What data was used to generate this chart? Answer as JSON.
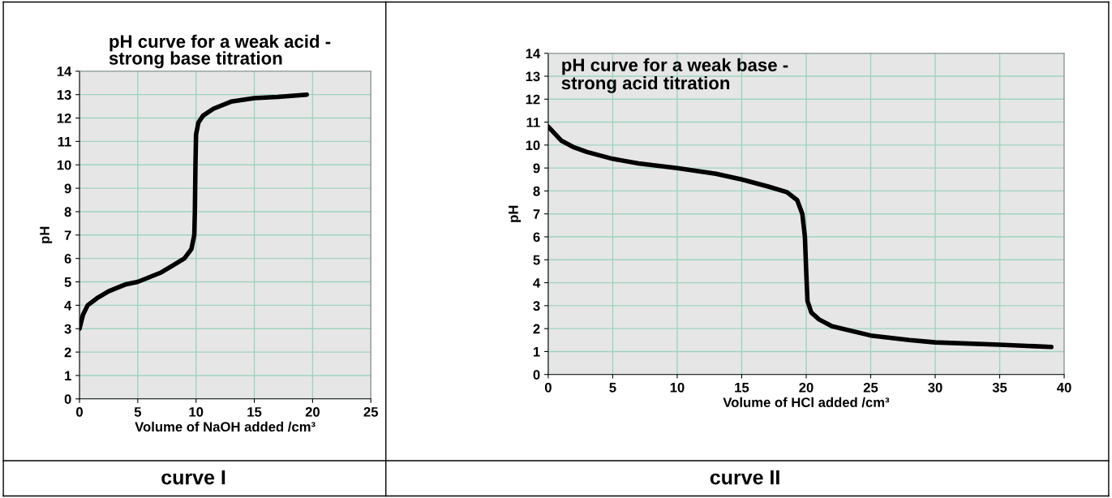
{
  "chart_data": [
    {
      "type": "line",
      "title": "pH curve for a weak acid -\nstrong base titration",
      "xlabel": "Volume of NaOH added /cm³",
      "ylabel": "pH",
      "x": [
        0,
        0.3,
        0.7,
        1.5,
        2.5,
        4,
        5,
        6,
        7,
        8,
        9,
        9.6,
        9.85,
        9.9,
        9.95,
        10,
        10.2,
        10.6,
        11.5,
        13,
        15,
        17,
        19.5
      ],
      "series": [
        {
          "color": "#000000",
          "values": [
            3.0,
            3.6,
            4.0,
            4.3,
            4.6,
            4.9,
            5.0,
            5.2,
            5.4,
            5.7,
            6.0,
            6.4,
            7.0,
            8.0,
            10.0,
            11.3,
            11.8,
            12.1,
            12.4,
            12.7,
            12.85,
            12.9,
            13.0
          ]
        }
      ],
      "xlim": [
        0,
        25
      ],
      "ylim": [
        0,
        14
      ],
      "xticks": [
        0,
        5,
        10,
        15,
        20,
        25
      ],
      "yticks": [
        0,
        1,
        2,
        3,
        4,
        5,
        6,
        7,
        8,
        9,
        10,
        11,
        12,
        13,
        14
      ],
      "grid": true,
      "annotations": [
        "curve I"
      ]
    },
    {
      "type": "line",
      "title": "pH curve for a weak base -\nstrong acid titration",
      "xlabel": "Volume of HCl added /cm³",
      "ylabel": "pH",
      "x": [
        0,
        0.5,
        1,
        2,
        3,
        5,
        7,
        10,
        13,
        15,
        17,
        18.5,
        19.3,
        19.7,
        19.9,
        20,
        20.1,
        20.4,
        21,
        22,
        25,
        28,
        30,
        35,
        39
      ],
      "series": [
        {
          "color": "#000000",
          "values": [
            10.8,
            10.5,
            10.2,
            9.9,
            9.7,
            9.4,
            9.2,
            9.0,
            8.75,
            8.5,
            8.2,
            7.95,
            7.6,
            7.0,
            6.0,
            4.5,
            3.2,
            2.7,
            2.4,
            2.1,
            1.7,
            1.5,
            1.4,
            1.3,
            1.2
          ]
        }
      ],
      "xlim": [
        0,
        40
      ],
      "ylim": [
        0,
        14
      ],
      "xticks": [
        0,
        5,
        10,
        15,
        20,
        25,
        30,
        35,
        40
      ],
      "yticks": [
        0,
        1,
        2,
        3,
        4,
        5,
        6,
        7,
        8,
        9,
        10,
        11,
        12,
        13,
        14
      ],
      "grid": true,
      "annotations": [
        "curve II"
      ]
    }
  ]
}
